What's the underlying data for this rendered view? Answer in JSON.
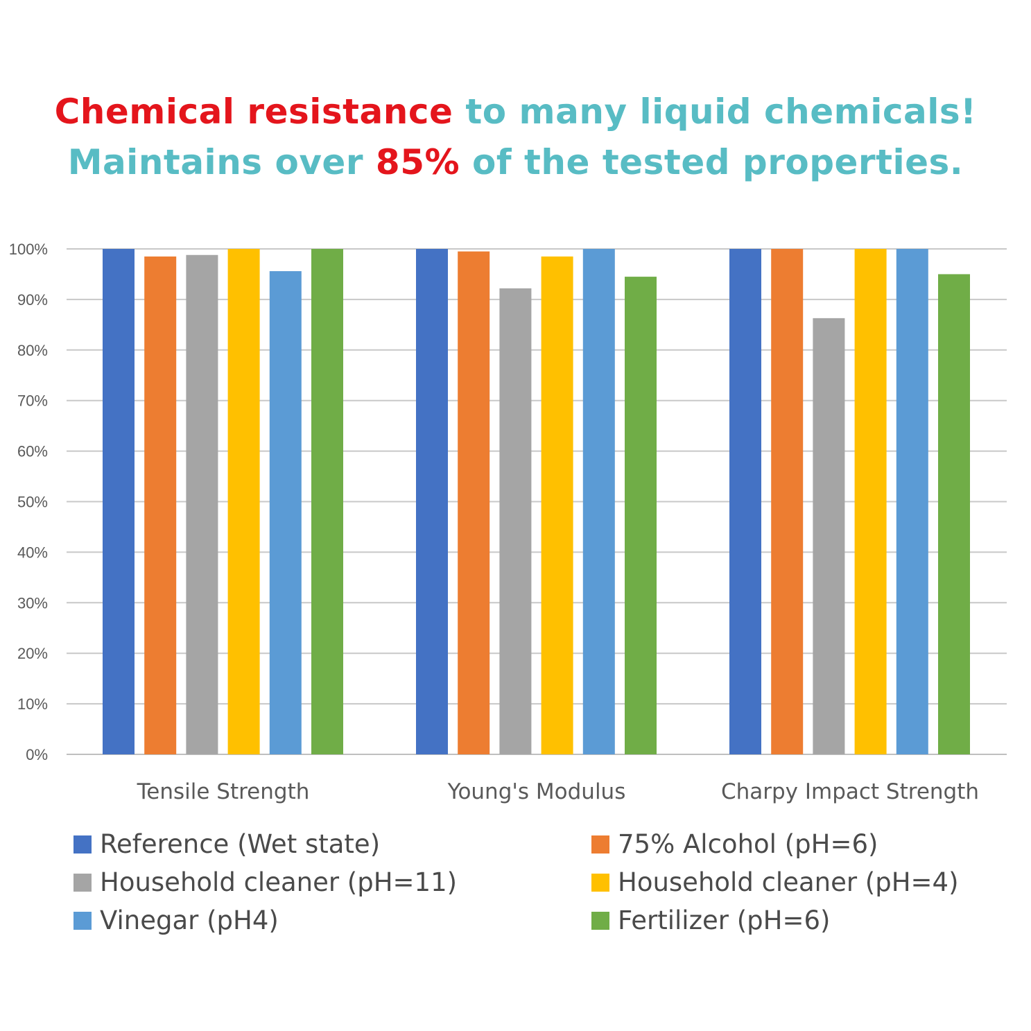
{
  "headline": {
    "line1_red": "Chemical resistance",
    "line1_teal": "to many liquid chemicals!",
    "line2_teal_a": "Maintains over",
    "line2_red": "85%",
    "line2_teal_b": "of the tested properties."
  },
  "colors": {
    "red": "#e4151c",
    "teal": "#58bcc4",
    "grid": "#c8c8c8",
    "axis": "#bfbfbf"
  },
  "chart_data": {
    "type": "bar",
    "title": "",
    "xlabel": "",
    "ylabel": "",
    "ylim": [
      0,
      100
    ],
    "yticks": [
      "0%",
      "10%",
      "20%",
      "30%",
      "40%",
      "50%",
      "60%",
      "70%",
      "80%",
      "90%",
      "100%"
    ],
    "grid": true,
    "legend_position": "bottom",
    "categories": [
      "Tensile Strength",
      "Young's Modulus",
      "Charpy Impact Strength"
    ],
    "series": [
      {
        "name": "Reference (Wet state)",
        "color": "#4472c4",
        "values": [
          100,
          100,
          100
        ]
      },
      {
        "name": "75% Alcohol (pH=6)",
        "color": "#ed7d31",
        "values": [
          98.5,
          99.5,
          100
        ]
      },
      {
        "name": "Household cleaner (pH=11)",
        "color": "#a5a5a5",
        "values": [
          98.8,
          92.2,
          86.3
        ]
      },
      {
        "name": "Household cleaner (pH=4)",
        "color": "#ffc000",
        "values": [
          100,
          98.5,
          100
        ]
      },
      {
        "name": "Vinegar (pH4)",
        "color": "#5b9bd5",
        "values": [
          95.6,
          100,
          100
        ]
      },
      {
        "name": "Fertilizer (pH=6)",
        "color": "#70ad47",
        "values": [
          100,
          94.5,
          95
        ]
      }
    ]
  }
}
